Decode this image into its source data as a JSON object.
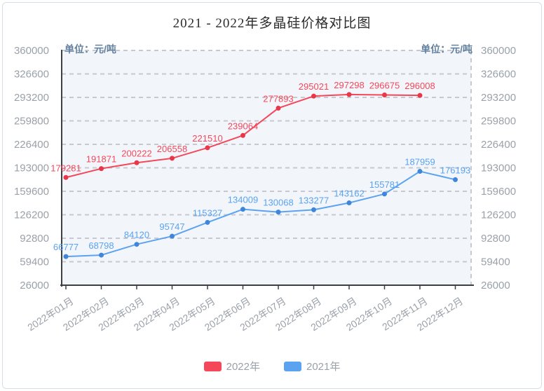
{
  "title": "2021 - 2022年多晶硅价格对比图",
  "unit_left": "单位：元/吨",
  "unit_right": "单位：元/吨",
  "legend": {
    "items": [
      {
        "label": "2022年",
        "color": "#f4485a"
      },
      {
        "label": "2021年",
        "color": "#5ba3f0"
      }
    ]
  },
  "chart_data": {
    "type": "line",
    "title": "2021 - 2022年多晶硅价格对比图",
    "unit": "元/吨",
    "categories": [
      "2022年01月",
      "2022年02月",
      "2022年03月",
      "2022年04月",
      "2022年05月",
      "2022年06月",
      "2022年07月",
      "2022年08月",
      "2022年09月",
      "2022年10月",
      "2022年11月",
      "2022年12月"
    ],
    "series": [
      {
        "name": "2022年",
        "color": "#f4485a",
        "marker_color": "#e73748",
        "values": [
          179281,
          191871,
          200222,
          206558,
          221510,
          239064,
          277893,
          295021,
          297298,
          296675,
          296008
        ]
      },
      {
        "name": "2021年",
        "color": "#5ba3f0",
        "marker_color": "#3f86db",
        "values": [
          66777,
          68798,
          84120,
          95747,
          115327,
          134009,
          130068,
          133277,
          143162,
          155781,
          187959,
          176193
        ]
      }
    ],
    "ylim": [
      26000,
      360000
    ],
    "yticks": [
      26000,
      59400,
      92800,
      126200,
      159600,
      193000,
      226400,
      259800,
      293200,
      326600,
      360000
    ],
    "grid": true,
    "grid_style": "dashed",
    "x_label_rotation": -33,
    "data_labels": true,
    "legend_position": "bottom"
  },
  "style": {
    "plot_bg": "#f2f6fb",
    "grid_color": "#c6c9cf",
    "axis_color": "#3b4045",
    "tick_text_color": "#9aa1a9"
  }
}
